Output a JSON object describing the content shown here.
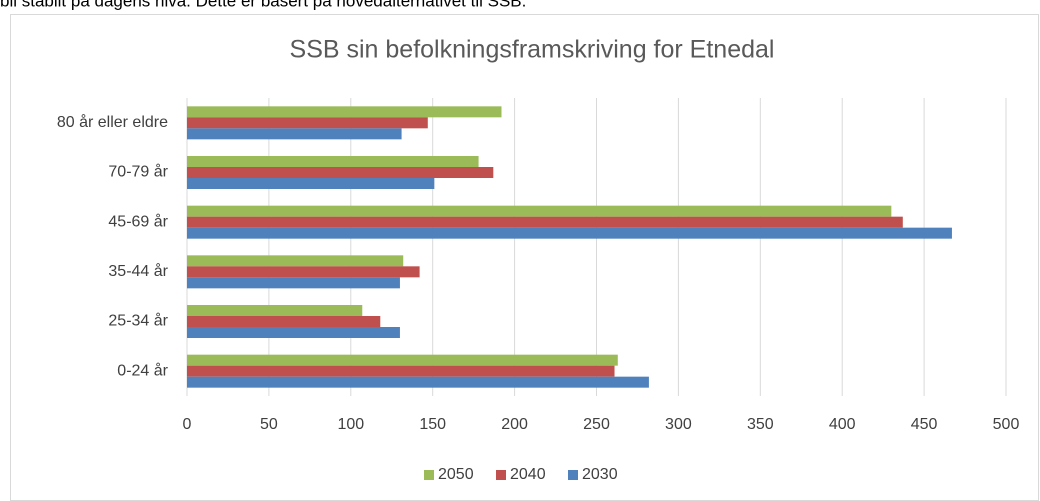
{
  "intro_text": "bli stabilt på dagens nivå. Dette er basert på hovedalternativet til SSB.",
  "chart_data": {
    "type": "hbar",
    "title": "SSB sin befolkningsframskriving for Etnedal",
    "categories": [
      "0-24 år",
      "25-34 år",
      "35-44 år",
      "45-69 år",
      "70-79 år",
      "80 år eller eldre"
    ],
    "series": [
      {
        "name": "2050",
        "color": "#9bbb59",
        "values": [
          263,
          107,
          132,
          430,
          178,
          192
        ]
      },
      {
        "name": "2040",
        "color": "#c0504d",
        "values": [
          261,
          118,
          142,
          437,
          187,
          147
        ]
      },
      {
        "name": "2030",
        "color": "#4f81bd",
        "values": [
          282,
          130,
          130,
          467,
          151,
          131
        ]
      }
    ],
    "xlim": [
      0,
      500
    ],
    "xticks": [
      0,
      50,
      100,
      150,
      200,
      250,
      300,
      350,
      400,
      450,
      500
    ],
    "grid": true,
    "legend": "bottom"
  }
}
